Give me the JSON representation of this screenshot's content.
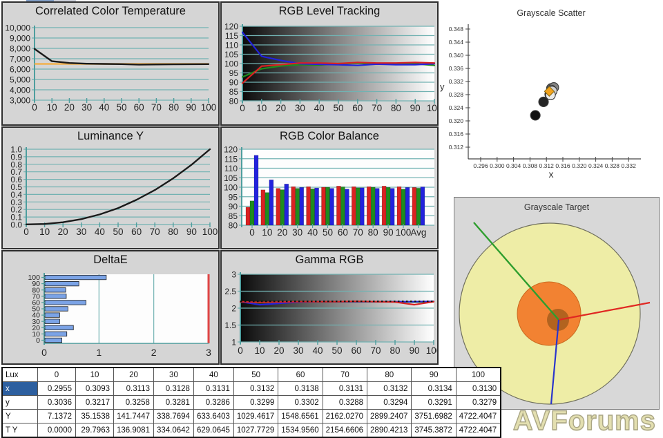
{
  "page": {
    "watermark": "AVForums"
  },
  "colors": {
    "grid": "#72b2b2",
    "axis": "#4e9e9e",
    "panel_bg": "#d5d5d5",
    "red": "#d92222",
    "green": "#1e8c1e",
    "blue": "#2222dd",
    "cct_line": "#1a1a1a",
    "cct_reference": "#f2b14e",
    "deltae_bar": "#7ba3e6",
    "deltae_limit": "#e04545",
    "gamma_reference": "#111111",
    "luminance_line": "#1a1a1a",
    "scatter_target": "#f2a31d",
    "table_selection": "#2d5f9f",
    "watermark_fill": "#e3dfb0"
  },
  "chart_data": [
    {
      "type": "line",
      "title": "Correlated Color Temperature",
      "x": [
        0,
        10,
        20,
        30,
        40,
        50,
        60,
        70,
        80,
        90,
        100
      ],
      "xticks": [
        "0",
        "10",
        "20",
        "30",
        "40",
        "50",
        "60",
        "70",
        "80",
        "90",
        "100"
      ],
      "ylim": [
        3000,
        10000
      ],
      "yticks": [
        {
          "v": 10000,
          "label": "10,000"
        },
        {
          "v": 9000,
          "label": "9,000"
        },
        {
          "v": 8000,
          "label": "8,000"
        },
        {
          "v": 7000,
          "label": "7,000"
        },
        {
          "v": 6000,
          "label": "6,000"
        },
        {
          "v": 5000,
          "label": "5,000"
        },
        {
          "v": 4000,
          "label": "4,000"
        },
        {
          "v": 3000,
          "label": "3,000"
        }
      ],
      "series": [
        {
          "name": "CCT",
          "color": "#1a1a1a",
          "values": [
            7950,
            6760,
            6590,
            6520,
            6500,
            6480,
            6430,
            6450,
            6460,
            6470,
            6480
          ]
        }
      ],
      "reference_line": {
        "value": 6500,
        "color": "#f2b14e"
      }
    },
    {
      "type": "line",
      "title": "RGB Level Tracking",
      "x": [
        0,
        10,
        20,
        30,
        40,
        50,
        60,
        70,
        80,
        90,
        100
      ],
      "xticks": [
        "0",
        "10",
        "20",
        "30",
        "40",
        "50",
        "60",
        "70",
        "80",
        "90",
        "100"
      ],
      "ylim": [
        80,
        120
      ],
      "yticks": [
        {
          "v": 120,
          "label": "120"
        },
        {
          "v": 115,
          "label": "115"
        },
        {
          "v": 110,
          "label": "110"
        },
        {
          "v": 105,
          "label": "105"
        },
        {
          "v": 100,
          "label": "100"
        },
        {
          "v": 95,
          "label": "95"
        },
        {
          "v": 90,
          "label": "90"
        },
        {
          "v": 85,
          "label": "85"
        },
        {
          "v": 80,
          "label": "80"
        }
      ],
      "gradient_background": true,
      "series": [
        {
          "name": "Red",
          "color": "#d92222",
          "values": [
            89.5,
            98.6,
            99.4,
            100.3,
            100.3,
            100.0,
            100.6,
            100.3,
            100.3,
            100.6,
            100.3
          ]
        },
        {
          "name": "Green",
          "color": "#1e8c1e",
          "values": [
            92.8,
            97.2,
            98.7,
            99.4,
            99.2,
            100.0,
            100.2,
            99.7,
            100.0,
            99.9,
            99.0
          ]
        },
        {
          "name": "Blue",
          "color": "#2222dd",
          "values": [
            116.8,
            103.9,
            101.7,
            99.9,
            99.6,
            99.4,
            99.0,
            99.7,
            99.4,
            99.4,
            99.9
          ]
        }
      ]
    },
    {
      "type": "scatter",
      "title": "Grayscale Scatter",
      "xlabel": "x",
      "ylabel": "y",
      "xlim": [
        0.293,
        0.3353
      ],
      "ylim": [
        0.3084,
        0.3495
      ],
      "xticks": [
        {
          "v": 0.296,
          "label": "0.296"
        },
        {
          "v": 0.3,
          "label": "0.300"
        },
        {
          "v": 0.304,
          "label": "0.304"
        },
        {
          "v": 0.308,
          "label": "0.308"
        },
        {
          "v": 0.312,
          "label": "0.312"
        },
        {
          "v": 0.316,
          "label": "0.316"
        },
        {
          "v": 0.32,
          "label": "0.320"
        },
        {
          "v": 0.324,
          "label": "0.324"
        },
        {
          "v": 0.328,
          "label": "0.328"
        },
        {
          "v": 0.332,
          "label": "0.332"
        }
      ],
      "yticks": [
        {
          "v": 0.312,
          "label": "0.312"
        },
        {
          "v": 0.316,
          "label": "0.316"
        },
        {
          "v": 0.32,
          "label": "0.320"
        },
        {
          "v": 0.324,
          "label": "0.324"
        },
        {
          "v": 0.328,
          "label": "0.328"
        },
        {
          "v": 0.332,
          "label": "0.332"
        },
        {
          "v": 0.336,
          "label": "0.336"
        },
        {
          "v": 0.34,
          "label": "0.340"
        },
        {
          "v": 0.344,
          "label": "0.344"
        },
        {
          "v": 0.348,
          "label": "0.348"
        }
      ],
      "points": [
        {
          "level": 0,
          "x": 0.2955,
          "y": 0.3036
        },
        {
          "level": 10,
          "x": 0.3093,
          "y": 0.3217
        },
        {
          "level": 20,
          "x": 0.3113,
          "y": 0.3258
        },
        {
          "level": 30,
          "x": 0.3128,
          "y": 0.3281
        },
        {
          "level": 40,
          "x": 0.3131,
          "y": 0.3286
        },
        {
          "level": 50,
          "x": 0.3132,
          "y": 0.3299
        },
        {
          "level": 60,
          "x": 0.3138,
          "y": 0.3302
        },
        {
          "level": 70,
          "x": 0.3131,
          "y": 0.3288
        },
        {
          "level": 80,
          "x": 0.3132,
          "y": 0.3294
        },
        {
          "level": 90,
          "x": 0.3134,
          "y": 0.3291
        },
        {
          "level": 100,
          "x": 0.313,
          "y": 0.3279
        }
      ],
      "target": {
        "x": 0.3127,
        "y": 0.329
      }
    },
    {
      "type": "line",
      "title": "Luminance Y",
      "x": [
        0,
        10,
        20,
        30,
        40,
        50,
        60,
        70,
        80,
        90,
        100
      ],
      "xticks": [
        "0",
        "10",
        "20",
        "30",
        "40",
        "50",
        "60",
        "70",
        "80",
        "90",
        "100"
      ],
      "ylim": [
        0,
        1
      ],
      "yticks": [
        {
          "v": 1.0,
          "label": "1.0"
        },
        {
          "v": 0.9,
          "label": "0.9"
        },
        {
          "v": 0.8,
          "label": "0.8"
        },
        {
          "v": 0.7,
          "label": "0.7"
        },
        {
          "v": 0.6,
          "label": "0.6"
        },
        {
          "v": 0.5,
          "label": "0.5"
        },
        {
          "v": 0.4,
          "label": "0.4"
        },
        {
          "v": 0.3,
          "label": "0.3"
        },
        {
          "v": 0.2,
          "label": "0.2"
        },
        {
          "v": 0.1,
          "label": "0.1"
        },
        {
          "v": 0.0,
          "label": "0.0"
        }
      ],
      "series": [
        {
          "name": "Luminance",
          "color": "#1a1a1a",
          "values": [
            0.002,
            0.007,
            0.03,
            0.072,
            0.134,
            0.218,
            0.328,
            0.458,
            0.614,
            0.794,
            1.0
          ]
        }
      ]
    },
    {
      "type": "bar",
      "title": "RGB Color Balance",
      "categories": [
        "0",
        "10",
        "20",
        "30",
        "40",
        "50",
        "60",
        "70",
        "80",
        "90",
        "100",
        "Avg"
      ],
      "ylim": [
        80,
        120
      ],
      "yticks": [
        {
          "v": 120,
          "label": "120"
        },
        {
          "v": 115,
          "label": "115"
        },
        {
          "v": 110,
          "label": "110"
        },
        {
          "v": 105,
          "label": "105"
        },
        {
          "v": 100,
          "label": "100"
        },
        {
          "v": 95,
          "label": "95"
        },
        {
          "v": 90,
          "label": "90"
        },
        {
          "v": 85,
          "label": "85"
        },
        {
          "v": 80,
          "label": "80"
        }
      ],
      "series": [
        {
          "name": "Red",
          "color": "#d92222",
          "values": [
            89.5,
            98.6,
            99.4,
            100.3,
            100.3,
            100.0,
            100.6,
            100.3,
            100.3,
            100.6,
            100.3,
            99.9
          ]
        },
        {
          "name": "Green",
          "color": "#1e8c1e",
          "values": [
            92.8,
            97.2,
            98.7,
            99.4,
            99.2,
            100.0,
            100.2,
            99.7,
            100.0,
            99.9,
            99.0,
            99.5
          ]
        },
        {
          "name": "Blue",
          "color": "#2222dd",
          "values": [
            116.8,
            103.9,
            101.7,
            99.9,
            99.6,
            99.4,
            99.0,
            99.7,
            99.4,
            99.4,
            99.9,
            100.2
          ]
        }
      ]
    },
    {
      "type": "target",
      "title": "Grayscale Target",
      "rings": {
        "outer_fill": "#eeeda6",
        "outer_stroke": "#70705e",
        "mid_fill": "#f28232",
        "mid_stroke": "#c96a20",
        "inner_fill": "#b2631f"
      },
      "lines": {
        "green": "#2e9e2e",
        "red": "#e02822",
        "blue": "#2a35cc"
      }
    },
    {
      "type": "hbar",
      "title": "DeltaE",
      "categories": [
        "100",
        "90",
        "80",
        "70",
        "60",
        "50",
        "40",
        "30",
        "20",
        "10",
        "0"
      ],
      "values": [
        1.12,
        0.62,
        0.38,
        0.39,
        0.75,
        0.42,
        0.27,
        0.27,
        0.52,
        0.4,
        0.31
      ],
      "xlim": [
        0,
        3
      ],
      "xticks": [
        "0",
        "1",
        "2",
        "3"
      ],
      "limit_line": {
        "value": 3,
        "color": "#e04545"
      }
    },
    {
      "type": "line",
      "title": "Gamma RGB",
      "x": [
        0,
        10,
        20,
        30,
        40,
        50,
        60,
        70,
        80,
        90,
        100
      ],
      "xticks": [
        "0",
        "10",
        "20",
        "30",
        "40",
        "50",
        "60",
        "70",
        "80",
        "90",
        "100"
      ],
      "ylim": [
        1,
        3
      ],
      "yticks": [
        {
          "v": 3,
          "label": "3"
        },
        {
          "v": 2.5,
          "label": "2.5"
        },
        {
          "v": 2,
          "label": "2"
        },
        {
          "v": 1.5,
          "label": "1.5"
        },
        {
          "v": 1,
          "label": "1"
        }
      ],
      "gradient_background": true,
      "reference_line": {
        "value": 2.2,
        "color": "#111111",
        "style": "dotted"
      },
      "series": [
        {
          "name": "Green",
          "color": "#1e8c1e",
          "values": [
            2.18,
            2.16,
            2.18,
            2.19,
            2.19,
            2.19,
            2.19,
            2.19,
            2.19,
            2.18,
            2.19
          ]
        },
        {
          "name": "Blue",
          "color": "#2222dd",
          "values": [
            2.19,
            2.1,
            2.14,
            2.18,
            2.19,
            2.19,
            2.19,
            2.19,
            2.19,
            2.19,
            2.2
          ]
        },
        {
          "name": "Red",
          "color": "#d92222",
          "values": [
            2.19,
            2.17,
            2.18,
            2.19,
            2.19,
            2.19,
            2.2,
            2.19,
            2.18,
            2.1,
            2.19
          ]
        }
      ]
    },
    {
      "type": "table",
      "corner_label": "Lux",
      "columns": [
        "0",
        "10",
        "20",
        "30",
        "40",
        "50",
        "60",
        "70",
        "80",
        "90",
        "100"
      ],
      "rows": [
        {
          "label": "x",
          "selected": true,
          "values": [
            "0.2955",
            "0.3093",
            "0.3113",
            "0.3128",
            "0.3131",
            "0.3132",
            "0.3138",
            "0.3131",
            "0.3132",
            "0.3134",
            "0.3130"
          ]
        },
        {
          "label": "y",
          "selected": false,
          "values": [
            "0.3036",
            "0.3217",
            "0.3258",
            "0.3281",
            "0.3286",
            "0.3299",
            "0.3302",
            "0.3288",
            "0.3294",
            "0.3291",
            "0.3279"
          ]
        },
        {
          "label": "Y",
          "selected": false,
          "values": [
            "7.1372",
            "35.1538",
            "141.7447",
            "338.7694",
            "633.6403",
            "1029.4617",
            "1548.6561",
            "2162.0270",
            "2899.2407",
            "3751.6982",
            "4722.4047"
          ]
        },
        {
          "label": "T Y",
          "selected": false,
          "values": [
            "0.0000",
            "29.7963",
            "136.9081",
            "334.0642",
            "629.0645",
            "1027.7729",
            "1534.9560",
            "2154.6606",
            "2890.4213",
            "3745.3872",
            "4722.4047"
          ]
        }
      ]
    }
  ]
}
